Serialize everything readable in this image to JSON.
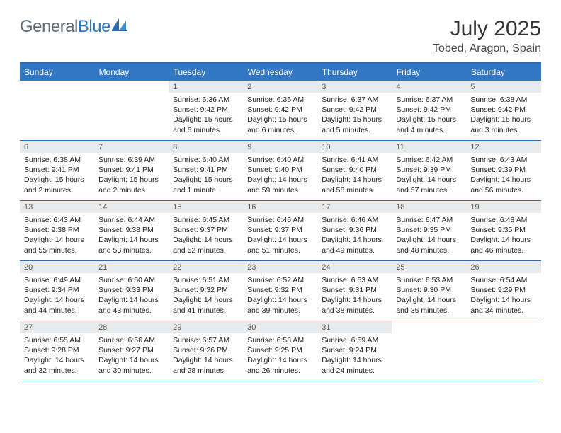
{
  "logo": {
    "part1": "General",
    "part2": "Blue"
  },
  "title": "July 2025",
  "subtitle": "Tobed, Aragon, Spain",
  "colors": {
    "header_bg": "#3277c3",
    "header_text": "#ffffff",
    "daynum_bg": "#e9eaeb",
    "border": "#2d6ab0",
    "logo_gray": "#5d6a74",
    "logo_blue": "#3277c3"
  },
  "fonts": {
    "title_size": 30,
    "subtitle_size": 16,
    "dayheader_size": 12,
    "cell_size": 10.5
  },
  "dayHeaders": [
    "Sunday",
    "Monday",
    "Tuesday",
    "Wednesday",
    "Thursday",
    "Friday",
    "Saturday"
  ],
  "weeks": [
    [
      {
        "empty": true
      },
      {
        "empty": true
      },
      {
        "day": "1",
        "sunrise": "Sunrise: 6:36 AM",
        "sunset": "Sunset: 9:42 PM",
        "daylight": "Daylight: 15 hours and 6 minutes."
      },
      {
        "day": "2",
        "sunrise": "Sunrise: 6:36 AM",
        "sunset": "Sunset: 9:42 PM",
        "daylight": "Daylight: 15 hours and 6 minutes."
      },
      {
        "day": "3",
        "sunrise": "Sunrise: 6:37 AM",
        "sunset": "Sunset: 9:42 PM",
        "daylight": "Daylight: 15 hours and 5 minutes."
      },
      {
        "day": "4",
        "sunrise": "Sunrise: 6:37 AM",
        "sunset": "Sunset: 9:42 PM",
        "daylight": "Daylight: 15 hours and 4 minutes."
      },
      {
        "day": "5",
        "sunrise": "Sunrise: 6:38 AM",
        "sunset": "Sunset: 9:42 PM",
        "daylight": "Daylight: 15 hours and 3 minutes."
      }
    ],
    [
      {
        "day": "6",
        "sunrise": "Sunrise: 6:38 AM",
        "sunset": "Sunset: 9:41 PM",
        "daylight": "Daylight: 15 hours and 2 minutes."
      },
      {
        "day": "7",
        "sunrise": "Sunrise: 6:39 AM",
        "sunset": "Sunset: 9:41 PM",
        "daylight": "Daylight: 15 hours and 2 minutes."
      },
      {
        "day": "8",
        "sunrise": "Sunrise: 6:40 AM",
        "sunset": "Sunset: 9:41 PM",
        "daylight": "Daylight: 15 hours and 1 minute."
      },
      {
        "day": "9",
        "sunrise": "Sunrise: 6:40 AM",
        "sunset": "Sunset: 9:40 PM",
        "daylight": "Daylight: 14 hours and 59 minutes."
      },
      {
        "day": "10",
        "sunrise": "Sunrise: 6:41 AM",
        "sunset": "Sunset: 9:40 PM",
        "daylight": "Daylight: 14 hours and 58 minutes."
      },
      {
        "day": "11",
        "sunrise": "Sunrise: 6:42 AM",
        "sunset": "Sunset: 9:39 PM",
        "daylight": "Daylight: 14 hours and 57 minutes."
      },
      {
        "day": "12",
        "sunrise": "Sunrise: 6:43 AM",
        "sunset": "Sunset: 9:39 PM",
        "daylight": "Daylight: 14 hours and 56 minutes."
      }
    ],
    [
      {
        "day": "13",
        "sunrise": "Sunrise: 6:43 AM",
        "sunset": "Sunset: 9:38 PM",
        "daylight": "Daylight: 14 hours and 55 minutes."
      },
      {
        "day": "14",
        "sunrise": "Sunrise: 6:44 AM",
        "sunset": "Sunset: 9:38 PM",
        "daylight": "Daylight: 14 hours and 53 minutes."
      },
      {
        "day": "15",
        "sunrise": "Sunrise: 6:45 AM",
        "sunset": "Sunset: 9:37 PM",
        "daylight": "Daylight: 14 hours and 52 minutes."
      },
      {
        "day": "16",
        "sunrise": "Sunrise: 6:46 AM",
        "sunset": "Sunset: 9:37 PM",
        "daylight": "Daylight: 14 hours and 51 minutes."
      },
      {
        "day": "17",
        "sunrise": "Sunrise: 6:46 AM",
        "sunset": "Sunset: 9:36 PM",
        "daylight": "Daylight: 14 hours and 49 minutes."
      },
      {
        "day": "18",
        "sunrise": "Sunrise: 6:47 AM",
        "sunset": "Sunset: 9:35 PM",
        "daylight": "Daylight: 14 hours and 48 minutes."
      },
      {
        "day": "19",
        "sunrise": "Sunrise: 6:48 AM",
        "sunset": "Sunset: 9:35 PM",
        "daylight": "Daylight: 14 hours and 46 minutes."
      }
    ],
    [
      {
        "day": "20",
        "sunrise": "Sunrise: 6:49 AM",
        "sunset": "Sunset: 9:34 PM",
        "daylight": "Daylight: 14 hours and 44 minutes."
      },
      {
        "day": "21",
        "sunrise": "Sunrise: 6:50 AM",
        "sunset": "Sunset: 9:33 PM",
        "daylight": "Daylight: 14 hours and 43 minutes."
      },
      {
        "day": "22",
        "sunrise": "Sunrise: 6:51 AM",
        "sunset": "Sunset: 9:32 PM",
        "daylight": "Daylight: 14 hours and 41 minutes."
      },
      {
        "day": "23",
        "sunrise": "Sunrise: 6:52 AM",
        "sunset": "Sunset: 9:32 PM",
        "daylight": "Daylight: 14 hours and 39 minutes."
      },
      {
        "day": "24",
        "sunrise": "Sunrise: 6:53 AM",
        "sunset": "Sunset: 9:31 PM",
        "daylight": "Daylight: 14 hours and 38 minutes."
      },
      {
        "day": "25",
        "sunrise": "Sunrise: 6:53 AM",
        "sunset": "Sunset: 9:30 PM",
        "daylight": "Daylight: 14 hours and 36 minutes."
      },
      {
        "day": "26",
        "sunrise": "Sunrise: 6:54 AM",
        "sunset": "Sunset: 9:29 PM",
        "daylight": "Daylight: 14 hours and 34 minutes."
      }
    ],
    [
      {
        "day": "27",
        "sunrise": "Sunrise: 6:55 AM",
        "sunset": "Sunset: 9:28 PM",
        "daylight": "Daylight: 14 hours and 32 minutes."
      },
      {
        "day": "28",
        "sunrise": "Sunrise: 6:56 AM",
        "sunset": "Sunset: 9:27 PM",
        "daylight": "Daylight: 14 hours and 30 minutes."
      },
      {
        "day": "29",
        "sunrise": "Sunrise: 6:57 AM",
        "sunset": "Sunset: 9:26 PM",
        "daylight": "Daylight: 14 hours and 28 minutes."
      },
      {
        "day": "30",
        "sunrise": "Sunrise: 6:58 AM",
        "sunset": "Sunset: 9:25 PM",
        "daylight": "Daylight: 14 hours and 26 minutes."
      },
      {
        "day": "31",
        "sunrise": "Sunrise: 6:59 AM",
        "sunset": "Sunset: 9:24 PM",
        "daylight": "Daylight: 14 hours and 24 minutes."
      },
      {
        "empty": true
      },
      {
        "empty": true
      }
    ]
  ]
}
